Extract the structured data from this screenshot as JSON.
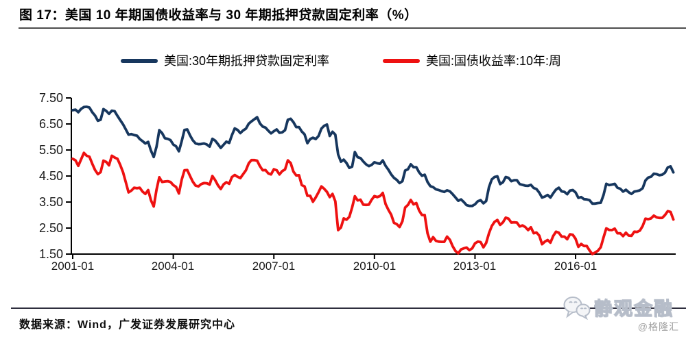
{
  "title": "图 17：美国 10 年期国债收益率与 30 年期抵押贷款固定利率（%）",
  "legend": {
    "items": [
      {
        "label": "美国:30年期抵押贷款固定利率",
        "color": "#17375e"
      },
      {
        "label": "美国:国债收益率:10年:周",
        "color": "#ee1111"
      }
    ]
  },
  "footer": {
    "source": "数据来源：Wind，广发证券发展研究中心",
    "watermark": "静观金融",
    "handle": "@格隆汇"
  },
  "chart_data": {
    "type": "line",
    "title": "美国10年期国债收益率与30年期抵押贷款固定利率(%)",
    "xlabel": "",
    "ylabel": "",
    "ylim": [
      1.5,
      7.5
    ],
    "grid": false,
    "legend_position": "top",
    "x_start": "2001-01",
    "x_end": "2018-12",
    "x_frequency": "monthly",
    "x_tick_labels": [
      "2001-01",
      "2004-01",
      "2007-01",
      "2010-01",
      "2013-01",
      "2016-01"
    ],
    "y_tick_labels": [
      "7.50",
      "6.50",
      "5.50",
      "4.50",
      "3.50",
      "2.50",
      "1.50"
    ],
    "series": [
      {
        "name": "美国:30年期抵押贷款固定利率",
        "color": "#17375e",
        "values": [
          7.03,
          7.05,
          6.95,
          7.08,
          7.15,
          7.16,
          7.13,
          6.95,
          6.82,
          6.62,
          6.66,
          7.07,
          7.0,
          6.89,
          7.01,
          6.99,
          6.81,
          6.65,
          6.49,
          6.29,
          6.09,
          6.11,
          6.07,
          6.05,
          5.92,
          5.84,
          5.75,
          5.81,
          5.48,
          5.23,
          5.63,
          6.26,
          6.15,
          5.95,
          5.93,
          5.88,
          5.71,
          5.64,
          5.45,
          5.83,
          6.27,
          6.29,
          6.06,
          5.87,
          5.75,
          5.72,
          5.73,
          5.75,
          5.71,
          5.63,
          5.93,
          5.86,
          5.72,
          5.58,
          5.7,
          5.82,
          5.77,
          6.07,
          6.33,
          6.27,
          6.15,
          6.25,
          6.32,
          6.51,
          6.6,
          6.68,
          6.76,
          6.52,
          6.4,
          6.36,
          6.24,
          6.14,
          6.22,
          6.29,
          6.16,
          6.18,
          6.26,
          6.66,
          6.7,
          6.57,
          6.38,
          6.38,
          6.21,
          6.1,
          5.76,
          5.92,
          5.97,
          5.92,
          6.04,
          6.32,
          6.43,
          6.48,
          6.04,
          6.2,
          6.09,
          5.33,
          5.05,
          5.13,
          5.0,
          4.81,
          4.86,
          5.42,
          5.22,
          5.19,
          5.06,
          4.95,
          4.88,
          4.93,
          5.03,
          4.99,
          4.97,
          5.1,
          4.89,
          4.74,
          4.56,
          4.43,
          4.35,
          4.23,
          4.3,
          4.71,
          4.76,
          4.95,
          4.84,
          4.84,
          4.64,
          4.51,
          4.55,
          4.27,
          4.11,
          4.07,
          3.99,
          3.96,
          3.92,
          3.89,
          3.95,
          3.91,
          3.8,
          3.68,
          3.55,
          3.6,
          3.5,
          3.38,
          3.35,
          3.35,
          3.41,
          3.53,
          3.57,
          3.45,
          3.54,
          4.07,
          4.37,
          4.46,
          4.49,
          4.19,
          4.26,
          4.46,
          4.43,
          4.3,
          4.34,
          4.34,
          4.19,
          4.16,
          4.13,
          4.12,
          4.16,
          4.04,
          4.0,
          3.86,
          3.67,
          3.71,
          3.77,
          3.67,
          3.84,
          3.98,
          4.05,
          3.91,
          3.89,
          3.8,
          3.94,
          3.96,
          3.87,
          3.66,
          3.69,
          3.61,
          3.6,
          3.57,
          3.44,
          3.44,
          3.46,
          3.47,
          3.77,
          4.2,
          4.15,
          4.17,
          4.2,
          4.05,
          4.01,
          3.9,
          3.97,
          3.88,
          3.81,
          3.9,
          3.92,
          3.95,
          4.03,
          4.33,
          4.44,
          4.47,
          4.59,
          4.57,
          4.53,
          4.55,
          4.63,
          4.83,
          4.87,
          4.64
        ]
      },
      {
        "name": "美国:国债收益率:10年:周",
        "color": "#ee1111",
        "values": [
          5.16,
          5.1,
          4.89,
          5.14,
          5.39,
          5.28,
          5.24,
          4.97,
          4.73,
          4.57,
          4.65,
          5.09,
          5.04,
          4.91,
          5.28,
          5.21,
          5.16,
          4.93,
          4.65,
          4.26,
          3.87,
          3.94,
          4.05,
          4.03,
          4.05,
          3.9,
          3.81,
          3.96,
          3.57,
          3.33,
          3.98,
          4.45,
          4.27,
          4.29,
          4.3,
          4.27,
          4.15,
          4.08,
          3.83,
          4.35,
          4.72,
          4.73,
          4.5,
          4.28,
          4.13,
          4.1,
          4.19,
          4.23,
          4.22,
          4.17,
          4.5,
          4.34,
          4.14,
          4.0,
          4.18,
          4.26,
          4.2,
          4.46,
          4.54,
          4.47,
          4.42,
          4.57,
          4.72,
          4.99,
          5.11,
          5.11,
          5.09,
          4.88,
          4.72,
          4.73,
          4.6,
          4.56,
          4.76,
          4.72,
          4.56,
          4.69,
          4.75,
          5.1,
          5.0,
          4.67,
          4.52,
          4.53,
          4.15,
          4.1,
          3.74,
          3.74,
          3.51,
          3.68,
          3.88,
          4.1,
          4.01,
          3.89,
          3.69,
          3.81,
          3.53,
          2.42,
          2.52,
          2.87,
          2.82,
          2.93,
          3.29,
          3.72,
          3.56,
          3.59,
          3.4,
          3.39,
          3.4,
          3.59,
          3.73,
          3.69,
          3.73,
          3.85,
          3.42,
          3.2,
          3.01,
          2.7,
          2.65,
          2.54,
          2.76,
          3.29,
          3.39,
          3.58,
          3.41,
          3.46,
          3.17,
          3.0,
          3.0,
          2.3,
          1.98,
          2.15,
          2.01,
          1.98,
          1.97,
          1.97,
          2.17,
          2.05,
          1.8,
          1.62,
          1.53,
          1.68,
          1.72,
          1.75,
          1.65,
          1.72,
          1.91,
          1.98,
          1.96,
          1.76,
          1.93,
          2.3,
          2.58,
          2.74,
          2.81,
          2.62,
          2.72,
          2.9,
          2.86,
          2.71,
          2.72,
          2.71,
          2.56,
          2.6,
          2.54,
          2.42,
          2.53,
          2.3,
          2.33,
          2.21,
          1.88,
          1.98,
          2.04,
          1.94,
          2.2,
          2.36,
          2.32,
          2.17,
          2.17,
          2.07,
          2.26,
          2.24,
          2.09,
          1.78,
          1.89,
          1.81,
          1.81,
          1.64,
          1.5,
          1.56,
          1.63,
          1.76,
          2.14,
          2.49,
          2.43,
          2.42,
          2.48,
          2.3,
          2.3,
          2.19,
          2.32,
          2.21,
          2.2,
          2.36,
          2.35,
          2.4,
          2.58,
          2.86,
          2.84,
          2.87,
          2.98,
          2.91,
          2.89,
          2.89,
          3.0,
          3.15,
          3.12,
          2.83
        ]
      }
    ]
  }
}
